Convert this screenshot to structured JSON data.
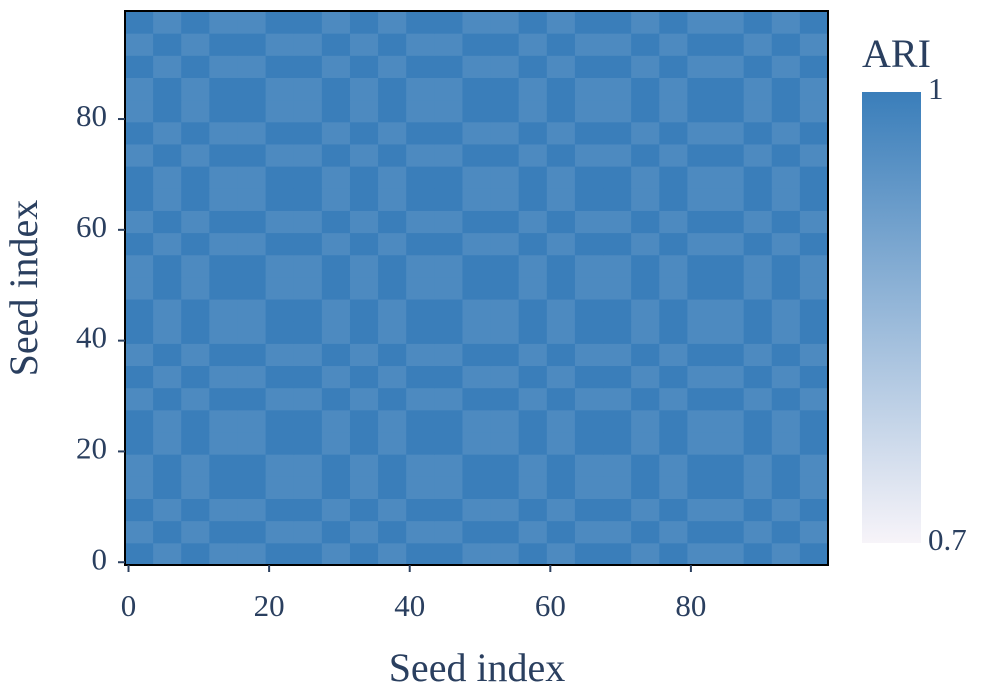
{
  "chart_data": {
    "type": "heatmap",
    "x_label": "Seed index",
    "y_label": "Seed index",
    "x_edges": [
      -0.5,
      3.5,
      7.5,
      11.5,
      15.5,
      19.5,
      23.5,
      27.5,
      31.5,
      35.5,
      39.5,
      43.5,
      47.5,
      51.5,
      55.5,
      59.5,
      63.5,
      67.5,
      71.5,
      75.5,
      79.5,
      83.5,
      87.5,
      91.5,
      95.5,
      99.5
    ],
    "y_edges": [
      -0.5,
      3.5,
      7.5,
      11.5,
      15.5,
      19.5,
      23.5,
      27.5,
      31.5,
      35.5,
      39.5,
      43.5,
      47.5,
      51.5,
      55.5,
      59.5,
      63.5,
      67.5,
      71.5,
      75.5,
      79.5,
      83.5,
      87.5,
      91.5,
      95.5,
      99.5
    ],
    "z": [
      [
        1,
        0.97,
        1,
        0.97,
        0.97,
        1,
        1,
        0.97,
        1,
        0.97,
        1,
        1,
        0.97,
        0.97,
        1,
        0.97,
        1,
        1,
        0.97,
        1,
        0.97,
        0.97,
        1,
        0.97,
        1
      ],
      [
        0.97,
        1,
        0.97,
        1,
        1,
        0.97,
        0.97,
        1,
        0.97,
        1,
        0.97,
        0.97,
        1,
        1,
        0.97,
        1,
        0.97,
        0.97,
        1,
        0.97,
        1,
        1,
        0.97,
        1,
        0.97
      ],
      [
        1,
        0.97,
        1,
        0.97,
        0.97,
        1,
        1,
        0.97,
        1,
        0.97,
        1,
        1,
        0.97,
        0.97,
        1,
        0.97,
        1,
        1,
        0.97,
        1,
        0.97,
        0.97,
        1,
        0.97,
        1
      ],
      [
        0.97,
        1,
        0.97,
        1,
        1,
        0.97,
        0.97,
        1,
        0.97,
        1,
        0.97,
        0.97,
        1,
        1,
        0.97,
        1,
        0.97,
        0.97,
        1,
        0.97,
        1,
        1,
        0.97,
        1,
        0.97
      ],
      [
        0.97,
        1,
        0.97,
        1,
        1,
        0.97,
        0.97,
        1,
        0.97,
        1,
        0.97,
        0.97,
        1,
        1,
        0.97,
        1,
        0.97,
        0.97,
        1,
        0.97,
        1,
        1,
        0.97,
        1,
        0.97
      ],
      [
        1,
        0.97,
        1,
        0.97,
        0.97,
        1,
        1,
        0.97,
        1,
        0.97,
        1,
        1,
        0.97,
        0.97,
        1,
        0.97,
        1,
        1,
        0.97,
        1,
        0.97,
        0.97,
        1,
        0.97,
        1
      ],
      [
        1,
        0.97,
        1,
        0.97,
        0.97,
        1,
        1,
        0.97,
        1,
        0.97,
        1,
        1,
        0.97,
        0.97,
        1,
        0.97,
        1,
        1,
        0.97,
        1,
        0.97,
        0.97,
        1,
        0.97,
        1
      ],
      [
        0.97,
        1,
        0.97,
        1,
        1,
        0.97,
        0.97,
        1,
        0.97,
        1,
        0.97,
        0.97,
        1,
        1,
        0.97,
        1,
        0.97,
        0.97,
        1,
        0.97,
        1,
        1,
        0.97,
        1,
        0.97
      ],
      [
        1,
        0.97,
        1,
        0.97,
        0.97,
        1,
        1,
        0.97,
        1,
        0.97,
        1,
        1,
        0.97,
        0.97,
        1,
        0.97,
        1,
        1,
        0.97,
        1,
        0.97,
        0.97,
        1,
        0.97,
        1
      ],
      [
        0.97,
        1,
        0.97,
        1,
        1,
        0.97,
        0.97,
        1,
        0.97,
        1,
        0.97,
        0.97,
        1,
        1,
        0.97,
        1,
        0.97,
        0.97,
        1,
        0.97,
        1,
        1,
        0.97,
        1,
        0.97
      ],
      [
        1,
        0.97,
        1,
        0.97,
        0.97,
        1,
        1,
        0.97,
        1,
        0.97,
        1,
        1,
        0.97,
        0.97,
        1,
        0.97,
        1,
        1,
        0.97,
        1,
        0.97,
        0.97,
        1,
        0.97,
        1
      ],
      [
        1,
        0.97,
        1,
        0.97,
        0.97,
        1,
        1,
        0.97,
        1,
        0.97,
        1,
        1,
        0.97,
        0.97,
        1,
        0.97,
        1,
        1,
        0.97,
        1,
        0.97,
        0.97,
        1,
        0.97,
        1
      ],
      [
        0.97,
        1,
        0.97,
        1,
        1,
        0.97,
        0.97,
        1,
        0.97,
        1,
        0.97,
        0.97,
        1,
        1,
        0.97,
        1,
        0.97,
        0.97,
        1,
        0.97,
        1,
        1,
        0.97,
        1,
        0.97
      ],
      [
        0.97,
        1,
        0.97,
        1,
        1,
        0.97,
        0.97,
        1,
        0.97,
        1,
        0.97,
        0.97,
        1,
        1,
        0.97,
        1,
        0.97,
        0.97,
        1,
        0.97,
        1,
        1,
        0.97,
        1,
        0.97
      ],
      [
        1,
        0.97,
        1,
        0.97,
        0.97,
        1,
        1,
        0.97,
        1,
        0.97,
        1,
        1,
        0.97,
        0.97,
        1,
        0.97,
        1,
        1,
        0.97,
        1,
        0.97,
        0.97,
        1,
        0.97,
        1
      ],
      [
        0.97,
        1,
        0.97,
        1,
        1,
        0.97,
        0.97,
        1,
        0.97,
        1,
        0.97,
        0.97,
        1,
        1,
        0.97,
        1,
        0.97,
        0.97,
        1,
        0.97,
        1,
        1,
        0.97,
        1,
        0.97
      ],
      [
        1,
        0.97,
        1,
        0.97,
        0.97,
        1,
        1,
        0.97,
        1,
        0.97,
        1,
        1,
        0.97,
        0.97,
        1,
        0.97,
        1,
        1,
        0.97,
        1,
        0.97,
        0.97,
        1,
        0.97,
        1
      ],
      [
        1,
        0.97,
        1,
        0.97,
        0.97,
        1,
        1,
        0.97,
        1,
        0.97,
        1,
        1,
        0.97,
        0.97,
        1,
        0.97,
        1,
        1,
        0.97,
        1,
        0.97,
        0.97,
        1,
        0.97,
        1
      ],
      [
        0.97,
        1,
        0.97,
        1,
        1,
        0.97,
        0.97,
        1,
        0.97,
        1,
        0.97,
        0.97,
        1,
        1,
        0.97,
        1,
        0.97,
        0.97,
        1,
        0.97,
        1,
        1,
        0.97,
        1,
        0.97
      ],
      [
        1,
        0.97,
        1,
        0.97,
        0.97,
        1,
        1,
        0.97,
        1,
        0.97,
        1,
        1,
        0.97,
        0.97,
        1,
        0.97,
        1,
        1,
        0.97,
        1,
        0.97,
        0.97,
        1,
        0.97,
        1
      ],
      [
        0.97,
        1,
        0.97,
        1,
        1,
        0.97,
        0.97,
        1,
        0.97,
        1,
        0.97,
        0.97,
        1,
        1,
        0.97,
        1,
        0.97,
        0.97,
        1,
        0.97,
        1,
        1,
        0.97,
        1,
        0.97
      ],
      [
        0.97,
        1,
        0.97,
        1,
        1,
        0.97,
        0.97,
        1,
        0.97,
        1,
        0.97,
        0.97,
        1,
        1,
        0.97,
        1,
        0.97,
        0.97,
        1,
        0.97,
        1,
        1,
        0.97,
        1,
        0.97
      ],
      [
        1,
        0.97,
        1,
        0.97,
        0.97,
        1,
        1,
        0.97,
        1,
        0.97,
        1,
        1,
        0.97,
        0.97,
        1,
        0.97,
        1,
        1,
        0.97,
        1,
        0.97,
        0.97,
        1,
        0.97,
        1
      ],
      [
        0.97,
        1,
        0.97,
        1,
        1,
        0.97,
        0.97,
        1,
        0.97,
        1,
        0.97,
        0.97,
        1,
        1,
        0.97,
        1,
        0.97,
        0.97,
        1,
        0.97,
        1,
        1,
        0.97,
        1,
        0.97
      ],
      [
        1,
        0.97,
        1,
        0.97,
        0.97,
        1,
        1,
        0.97,
        1,
        0.97,
        1,
        1,
        0.97,
        0.97,
        1,
        0.97,
        1,
        1,
        0.97,
        1,
        0.97,
        0.97,
        1,
        0.97,
        1
      ]
    ],
    "xlim": [
      -0.5,
      99.5
    ],
    "ylim": [
      -0.5,
      99.5
    ],
    "xticks": [
      0,
      20,
      40,
      60,
      80
    ],
    "yticks": [
      0,
      20,
      40,
      60,
      80
    ],
    "colorscale": [
      "#f7f4f9",
      "#3a7eba"
    ],
    "zlim": [
      0.7,
      1
    ],
    "colorbar_title": "ARI",
    "colorbar_ticks": [
      1,
      0.7
    ]
  }
}
